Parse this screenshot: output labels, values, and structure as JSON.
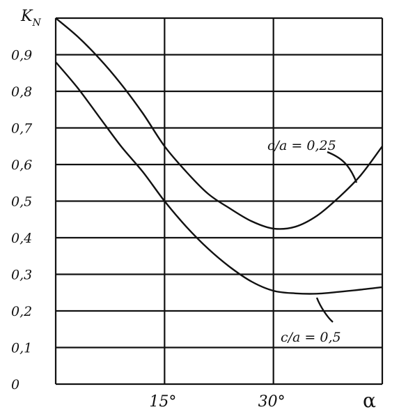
{
  "chart_data": {
    "type": "line",
    "ylabel": "K",
    "ylabel_sub": "N",
    "xlabel": "α",
    "x_unit": "degrees",
    "xlim": [
      0,
      45
    ],
    "ylim": [
      0,
      1.0
    ],
    "x_ticks": [
      15,
      30
    ],
    "x_tick_labels": [
      "15°",
      "30°"
    ],
    "y_ticks": [
      0,
      0.1,
      0.2,
      0.3,
      0.4,
      0.5,
      0.6,
      0.7,
      0.8,
      0.9
    ],
    "y_tick_labels": [
      "0",
      "0,1",
      "0,2",
      "0,3",
      "0,4",
      "0,5",
      "0,6",
      "0,7",
      "0,8",
      "0,9"
    ],
    "grid": true,
    "series": [
      {
        "name": "c/a = 0,25",
        "x": [
          0,
          3,
          6,
          9,
          12,
          15,
          18,
          21,
          24,
          27,
          30,
          33,
          36,
          39,
          42,
          45
        ],
        "y": [
          1.0,
          0.95,
          0.89,
          0.82,
          0.74,
          0.65,
          0.58,
          0.52,
          0.48,
          0.445,
          0.425,
          0.43,
          0.46,
          0.51,
          0.57,
          0.65
        ]
      },
      {
        "name": "c/a = 0,5",
        "x": [
          0,
          3,
          6,
          9,
          12,
          15,
          18,
          21,
          24,
          27,
          30,
          33,
          36,
          39,
          42,
          45
        ],
        "y": [
          0.88,
          0.81,
          0.73,
          0.65,
          0.58,
          0.5,
          0.43,
          0.37,
          0.32,
          0.28,
          0.255,
          0.248,
          0.247,
          0.252,
          0.258,
          0.265
        ]
      }
    ]
  }
}
